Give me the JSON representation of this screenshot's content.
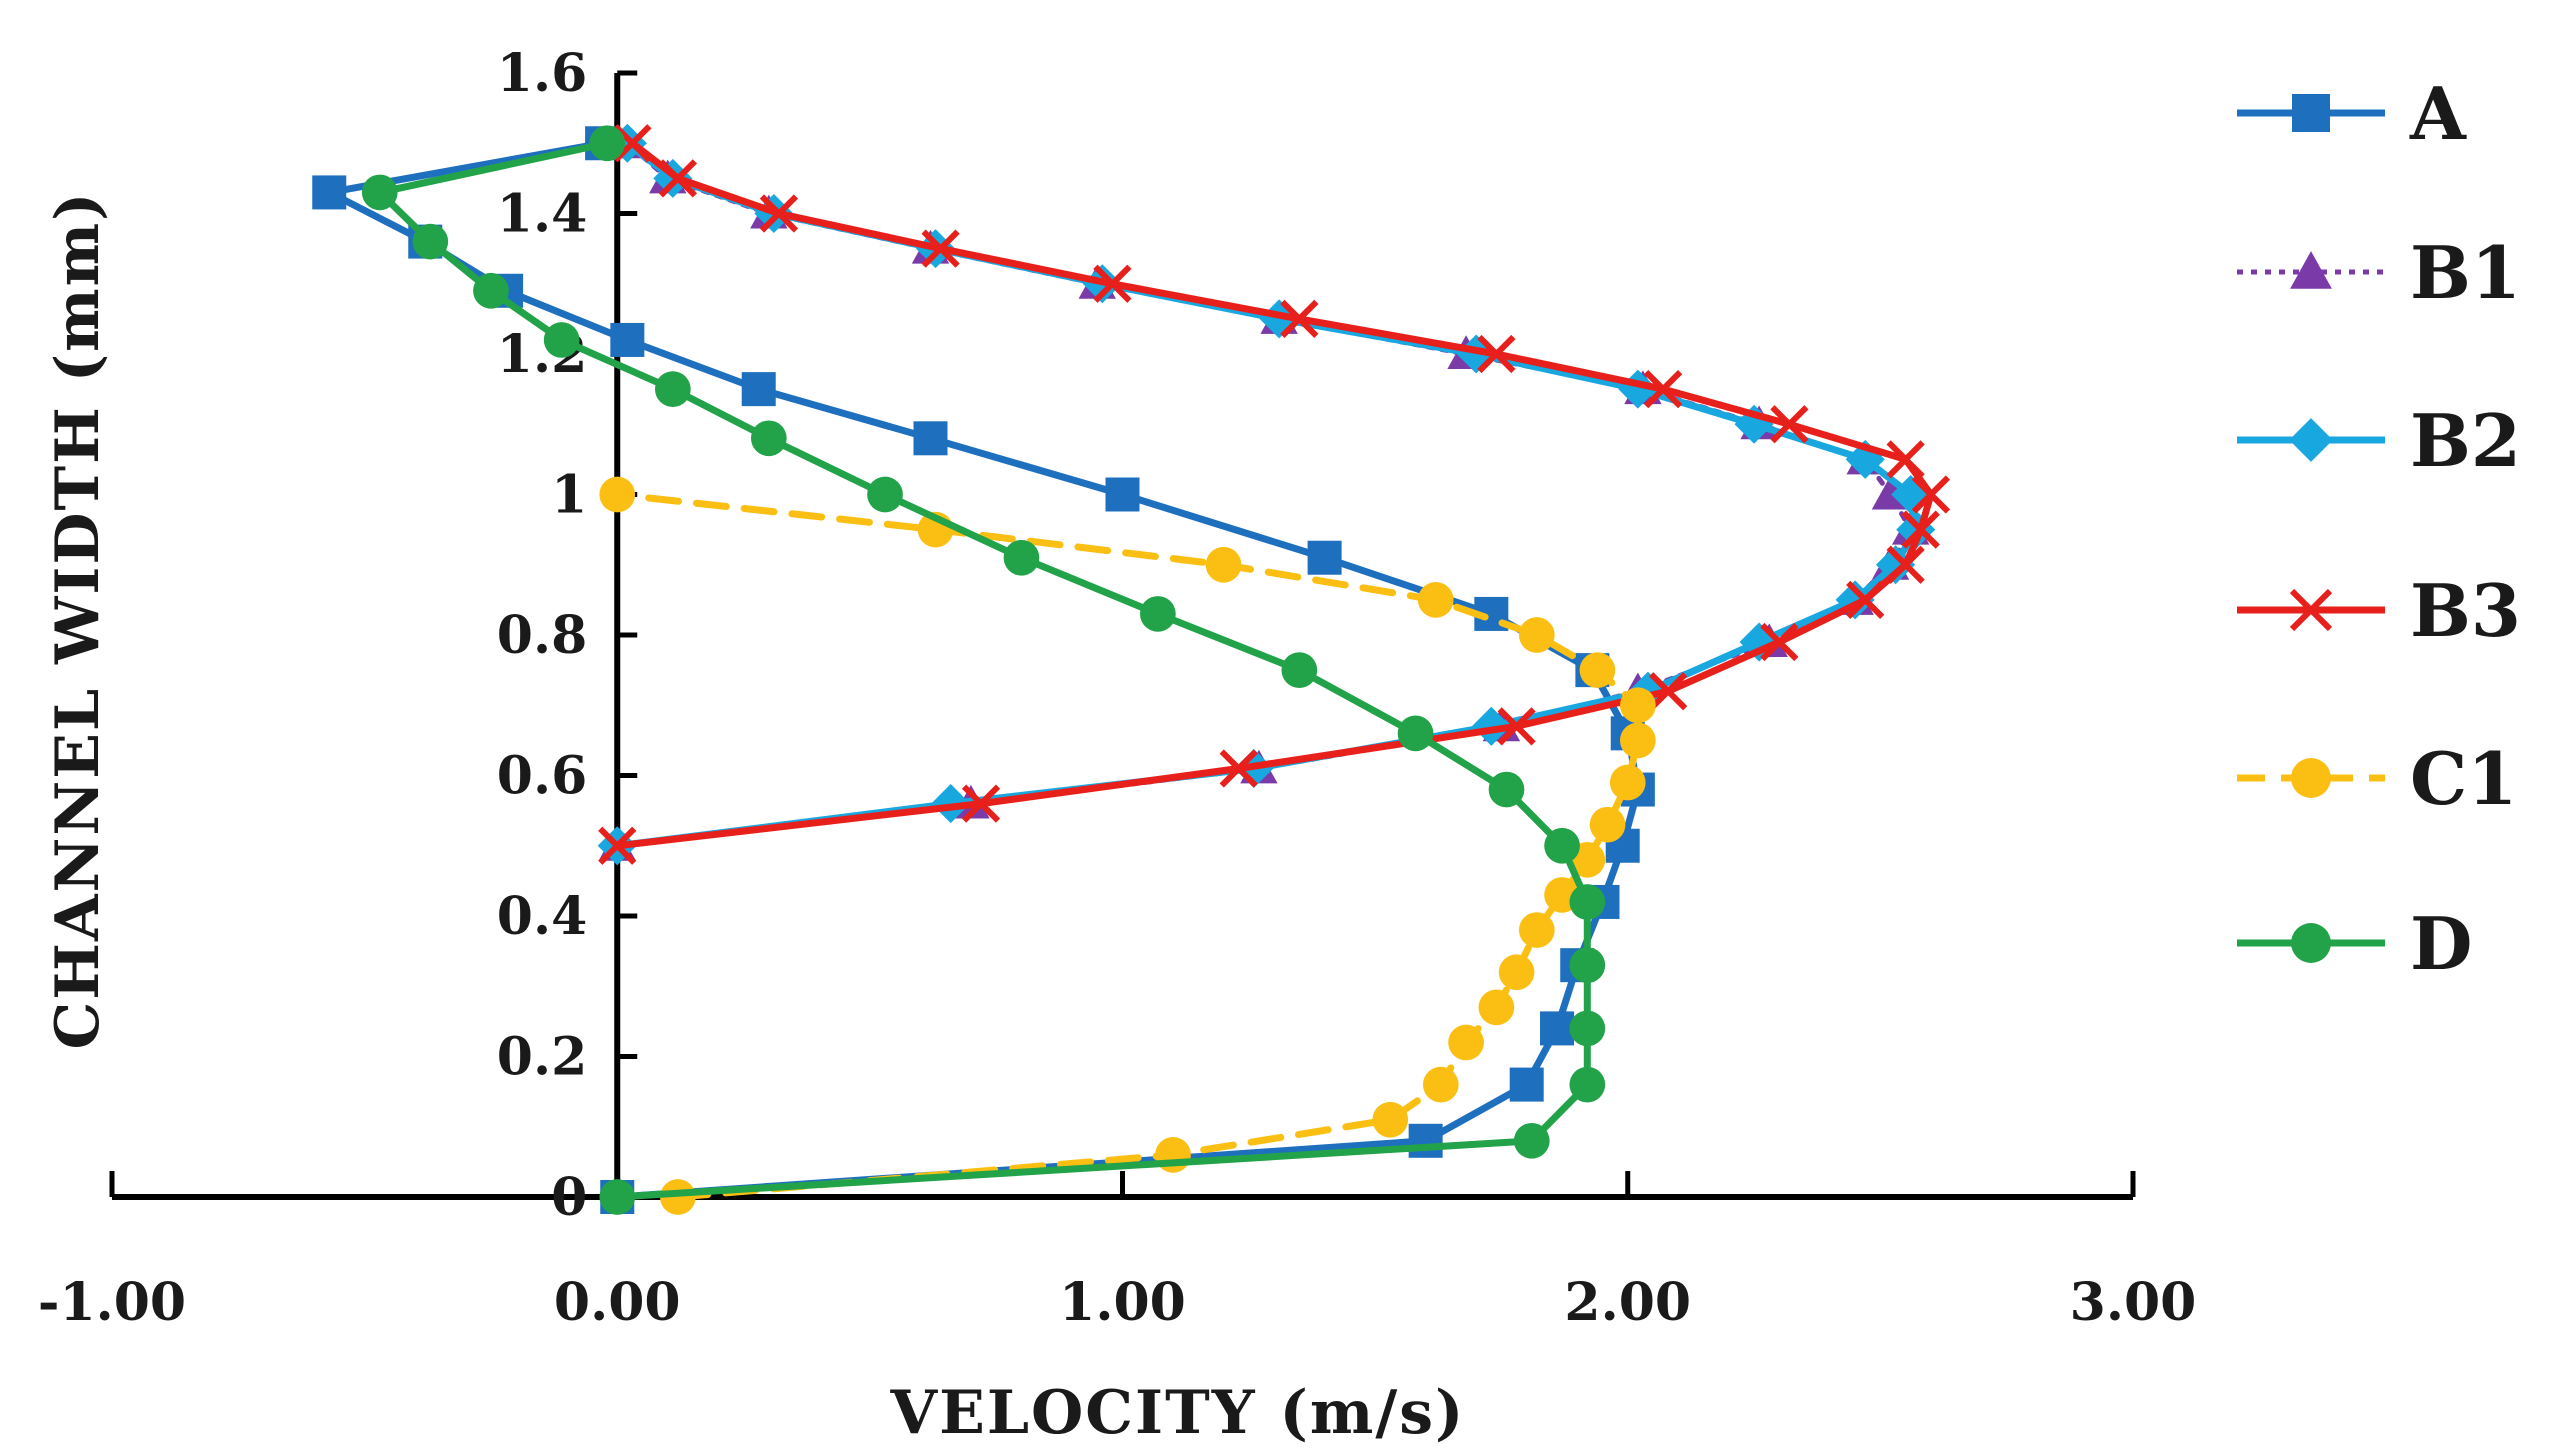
{
  "chart_data": {
    "type": "scatter",
    "title": "",
    "xlabel": "VELOCITY  (m/s)",
    "ylabel": "CHANNEL  WIDTH  (mm)",
    "xlim": [
      -1.0,
      3.0
    ],
    "ylim": [
      0,
      1.6
    ],
    "x_ticks": [
      -1.0,
      0.0,
      1.0,
      2.0,
      3.0
    ],
    "x_tick_labels": [
      "-1.00",
      "0.00",
      "1.00",
      "2.00",
      "3.00"
    ],
    "y_ticks": [
      0,
      0.2,
      0.4,
      0.6,
      0.8,
      1.0,
      1.2,
      1.4,
      1.6
    ],
    "y_tick_labels": [
      "0",
      "0.2",
      "0.4",
      "0.6",
      "0.8",
      "1",
      "1.2",
      "1.4",
      "1.6"
    ],
    "legend_position": "right",
    "series": [
      {
        "name": "A",
        "color": "#1f6fbf",
        "marker": "square",
        "line": "solid",
        "points": [
          [
            0,
            0
          ],
          [
            1.6,
            0.08
          ],
          [
            1.8,
            0.16
          ],
          [
            1.86,
            0.24
          ],
          [
            1.9,
            0.33
          ],
          [
            1.95,
            0.42
          ],
          [
            1.99,
            0.5
          ],
          [
            2.02,
            0.58
          ],
          [
            2.0,
            0.66
          ],
          [
            1.93,
            0.75
          ],
          [
            1.73,
            0.83
          ],
          [
            1.4,
            0.91
          ],
          [
            1.0,
            1.0
          ],
          [
            0.62,
            1.08
          ],
          [
            0.28,
            1.15
          ],
          [
            0.02,
            1.22
          ],
          [
            -0.22,
            1.29
          ],
          [
            -0.38,
            1.36
          ],
          [
            -0.57,
            1.43
          ],
          [
            -0.03,
            1.5
          ]
        ]
      },
      {
        "name": "B1",
        "color": "#7a3aa8",
        "marker": "triangle",
        "line": "dotted",
        "points": [
          [
            0,
            0.5
          ],
          [
            0.7,
            0.56
          ],
          [
            1.27,
            0.61
          ],
          [
            1.75,
            0.67
          ],
          [
            2.02,
            0.72
          ],
          [
            2.28,
            0.79
          ],
          [
            2.45,
            0.85
          ],
          [
            2.52,
            0.9
          ],
          [
            2.56,
            0.95
          ],
          [
            2.52,
            1.0
          ],
          [
            2.47,
            1.05
          ],
          [
            2.26,
            1.1
          ],
          [
            2.03,
            1.15
          ],
          [
            1.68,
            1.2
          ],
          [
            1.31,
            1.25
          ],
          [
            0.95,
            1.3
          ],
          [
            0.62,
            1.35
          ],
          [
            0.3,
            1.4
          ],
          [
            0.1,
            1.45
          ],
          [
            0.02,
            1.5
          ]
        ]
      },
      {
        "name": "B2",
        "color": "#19a7e0",
        "marker": "diamond",
        "line": "solid",
        "points": [
          [
            0,
            0.5
          ],
          [
            0.66,
            0.56
          ],
          [
            1.26,
            0.61
          ],
          [
            1.73,
            0.67
          ],
          [
            2.04,
            0.72
          ],
          [
            2.26,
            0.79
          ],
          [
            2.45,
            0.85
          ],
          [
            2.53,
            0.9
          ],
          [
            2.57,
            0.95
          ],
          [
            2.56,
            1.0
          ],
          [
            2.47,
            1.05
          ],
          [
            2.25,
            1.1
          ],
          [
            2.02,
            1.15
          ],
          [
            1.7,
            1.2
          ],
          [
            1.31,
            1.25
          ],
          [
            0.96,
            1.3
          ],
          [
            0.63,
            1.35
          ],
          [
            0.31,
            1.4
          ],
          [
            0.11,
            1.45
          ],
          [
            0.02,
            1.5
          ]
        ]
      },
      {
        "name": "B3",
        "color": "#e8201c",
        "marker": "x",
        "line": "solid",
        "points": [
          [
            0,
            0.5
          ],
          [
            0.72,
            0.56
          ],
          [
            1.23,
            0.61
          ],
          [
            1.78,
            0.67
          ],
          [
            2.08,
            0.72
          ],
          [
            2.3,
            0.79
          ],
          [
            2.47,
            0.85
          ],
          [
            2.55,
            0.9
          ],
          [
            2.58,
            0.95
          ],
          [
            2.6,
            1.0
          ],
          [
            2.55,
            1.05
          ],
          [
            2.32,
            1.1
          ],
          [
            2.07,
            1.15
          ],
          [
            1.74,
            1.2
          ],
          [
            1.35,
            1.25
          ],
          [
            0.98,
            1.3
          ],
          [
            0.64,
            1.35
          ],
          [
            0.32,
            1.4
          ],
          [
            0.12,
            1.45
          ],
          [
            0.03,
            1.5
          ]
        ]
      },
      {
        "name": "C1",
        "color": "#fbbf14",
        "marker": "circle",
        "line": "dashed",
        "points": [
          [
            0.12,
            0
          ],
          [
            1.1,
            0.06
          ],
          [
            1.53,
            0.11
          ],
          [
            1.63,
            0.16
          ],
          [
            1.68,
            0.22
          ],
          [
            1.74,
            0.27
          ],
          [
            1.78,
            0.32
          ],
          [
            1.82,
            0.38
          ],
          [
            1.87,
            0.43
          ],
          [
            1.92,
            0.48
          ],
          [
            1.96,
            0.53
          ],
          [
            2.0,
            0.59
          ],
          [
            2.02,
            0.65
          ],
          [
            2.02,
            0.7
          ],
          [
            1.94,
            0.75
          ],
          [
            1.82,
            0.8
          ],
          [
            1.62,
            0.85
          ],
          [
            1.2,
            0.9
          ],
          [
            0.63,
            0.95
          ],
          [
            0.0,
            1.0
          ]
        ]
      },
      {
        "name": "D",
        "color": "#22a34a",
        "marker": "circle",
        "line": "solid",
        "points": [
          [
            0,
            0
          ],
          [
            1.81,
            0.08
          ],
          [
            1.92,
            0.16
          ],
          [
            1.92,
            0.24
          ],
          [
            1.92,
            0.33
          ],
          [
            1.92,
            0.42
          ],
          [
            1.87,
            0.5
          ],
          [
            1.76,
            0.58
          ],
          [
            1.58,
            0.66
          ],
          [
            1.35,
            0.75
          ],
          [
            1.07,
            0.83
          ],
          [
            0.8,
            0.91
          ],
          [
            0.53,
            1.0
          ],
          [
            0.3,
            1.08
          ],
          [
            0.11,
            1.15
          ],
          [
            -0.11,
            1.22
          ],
          [
            -0.25,
            1.29
          ],
          [
            -0.37,
            1.36
          ],
          [
            -0.47,
            1.43
          ],
          [
            -0.02,
            1.5
          ]
        ]
      }
    ]
  }
}
